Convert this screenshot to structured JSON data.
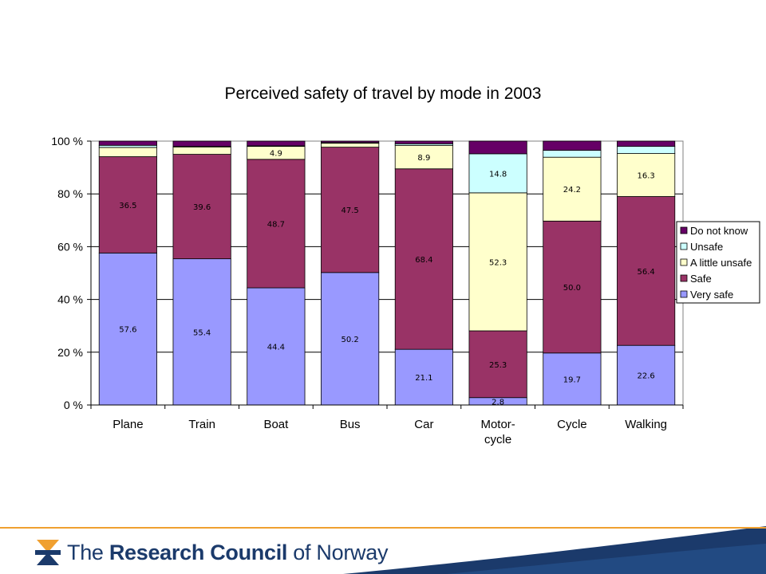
{
  "chart_data": {
    "type": "bar",
    "stacked": true,
    "title": "Perceived safety of travel by mode in 2003",
    "categories": [
      [
        "Plane"
      ],
      [
        "Train"
      ],
      [
        "Boat"
      ],
      [
        "Bus"
      ],
      [
        "Car"
      ],
      [
        "Motor-",
        "cycle"
      ],
      [
        "Cycle"
      ],
      [
        "Walking"
      ]
    ],
    "ylim": [
      0,
      100
    ],
    "ytick_labels": [
      "0 %",
      "20 %",
      "40 %",
      "60 %",
      "80 %",
      "100 %"
    ],
    "ytick_values": [
      0,
      20,
      40,
      60,
      80,
      100
    ],
    "grid": true,
    "legend_position": "right",
    "series": [
      {
        "name": "Very safe",
        "color": "#9999ff",
        "values": [
          57.6,
          55.4,
          44.4,
          50.2,
          21.1,
          2.8,
          19.7,
          22.6
        ],
        "labels": [
          "57.6",
          "55.4",
          "44.4",
          "50.2",
          "21.1",
          "2.8",
          "19.7",
          "22.6"
        ]
      },
      {
        "name": "Safe",
        "color": "#993366",
        "values": [
          36.5,
          39.6,
          48.7,
          47.5,
          68.4,
          25.3,
          50.0,
          56.4
        ],
        "labels": [
          "36.5",
          "39.6",
          "48.7",
          "47.5",
          "68.4",
          "25.3",
          "50.0",
          "56.4"
        ]
      },
      {
        "name": "A little unsafe",
        "color": "#ffffcc",
        "values": [
          3.5,
          2.8,
          4.9,
          1.5,
          8.9,
          52.3,
          24.2,
          16.3
        ],
        "labels": [
          "",
          "",
          "4.9",
          "",
          "8.9",
          "52.3",
          "24.2",
          "16.3"
        ]
      },
      {
        "name": "Unsafe",
        "color": "#ccffff",
        "values": [
          0.8,
          0.2,
          0.2,
          0.2,
          0.6,
          14.8,
          2.6,
          2.7
        ],
        "labels": [
          "",
          "",
          "",
          "",
          "",
          "14.8",
          "",
          ""
        ]
      },
      {
        "name": "Do not know",
        "color": "#660066",
        "values": [
          1.6,
          2.0,
          1.8,
          0.6,
          1.0,
          4.8,
          3.5,
          2.0
        ],
        "labels": [
          "",
          "",
          "",
          "",
          "",
          "",
          "",
          ""
        ]
      }
    ],
    "legend_order": [
      "Do not know",
      "Unsafe",
      "A little unsafe",
      "Safe",
      "Very safe"
    ]
  },
  "footer": {
    "brand_pre": "The ",
    "brand_bold": "Research Council",
    "brand_post": " of Norway"
  }
}
